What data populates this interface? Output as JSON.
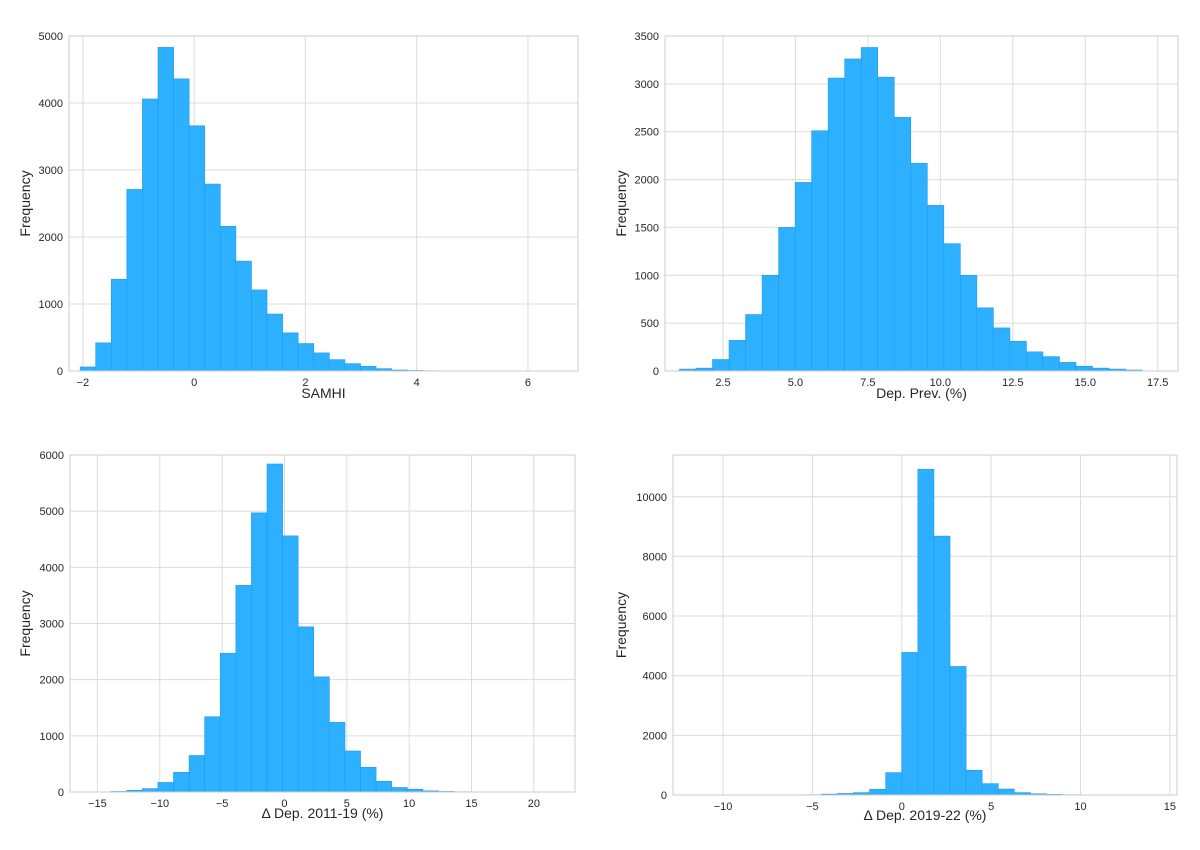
{
  "colors": {
    "bar": "#2db0ff",
    "bar_edge": "#1e9be8",
    "grid": "#dcdcdc",
    "frame": "#cccccc",
    "background": "#ffffff"
  },
  "chart_data": [
    {
      "type": "bar",
      "subtype": "histogram",
      "xlabel": "SAMHI",
      "ylabel": "Frequency",
      "xlim": [
        -2.25,
        6.9
      ],
      "ylim": [
        0,
        5000
      ],
      "xticks": [
        -2,
        0,
        2,
        4,
        6
      ],
      "xtick_labels": [
        "−2",
        "0",
        "2",
        "4",
        "6"
      ],
      "yticks": [
        0,
        1000,
        2000,
        3000,
        4000,
        5000
      ],
      "ytick_labels": [
        "0",
        "1000",
        "2000",
        "3000",
        "4000",
        "5000"
      ],
      "bin_start": -2.05,
      "bin_width": 0.28,
      "values": [
        60,
        420,
        1370,
        2710,
        4060,
        4830,
        4360,
        3660,
        2790,
        2160,
        1640,
        1210,
        850,
        570,
        410,
        270,
        170,
        110,
        70,
        35,
        15,
        8,
        4,
        2,
        1,
        1,
        0,
        0,
        0
      ]
    },
    {
      "type": "bar",
      "subtype": "histogram",
      "xlabel": "Dep. Prev. (%)",
      "ylabel": "Frequency",
      "xlim": [
        0.5,
        18.2
      ],
      "ylim": [
        0,
        3500
      ],
      "xticks": [
        2.5,
        5.0,
        7.5,
        10.0,
        12.5,
        15.0,
        17.5
      ],
      "xtick_labels": [
        "2.5",
        "5.0",
        "7.5",
        "10.0",
        "12.5",
        "15.0",
        "17.5"
      ],
      "yticks": [
        0,
        500,
        1000,
        1500,
        2000,
        2500,
        3000,
        3500
      ],
      "ytick_labels": [
        "0",
        "500",
        "1000",
        "1500",
        "2000",
        "2500",
        "3000",
        "3500"
      ],
      "bin_start": 1.0,
      "bin_width": 0.57,
      "values": [
        20,
        30,
        120,
        320,
        590,
        1000,
        1500,
        1970,
        2510,
        3060,
        3260,
        3380,
        3070,
        2650,
        2170,
        1730,
        1330,
        1000,
        660,
        450,
        310,
        200,
        150,
        90,
        50,
        30,
        20,
        10
      ]
    },
    {
      "type": "bar",
      "subtype": "histogram",
      "xlabel": "Δ Dep. 2011-19 (%)",
      "ylabel": "Frequency",
      "xlim": [
        -17.2,
        23.3
      ],
      "ylim": [
        0,
        6000
      ],
      "xticks": [
        -15,
        -10,
        -5,
        0,
        5,
        10,
        15,
        20
      ],
      "xtick_labels": [
        "−15",
        "−10",
        "−5",
        "0",
        "5",
        "10",
        "15",
        "20"
      ],
      "yticks": [
        0,
        1000,
        2000,
        3000,
        4000,
        5000,
        6000
      ],
      "ytick_labels": [
        "0",
        "1000",
        "2000",
        "3000",
        "4000",
        "5000",
        "6000"
      ],
      "bin_start": -13.9,
      "bin_width": 1.25,
      "values": [
        10,
        30,
        60,
        170,
        350,
        650,
        1340,
        2470,
        3680,
        4970,
        5840,
        4560,
        2940,
        2050,
        1240,
        730,
        440,
        190,
        80,
        50,
        20,
        10,
        5,
        2,
        1,
        0,
        0,
        0,
        0
      ]
    },
    {
      "type": "bar",
      "subtype": "histogram",
      "xlabel": "Δ Dep. 2019-22 (%)",
      "ylabel": "Frequency",
      "xlim": [
        -12.8,
        15.4
      ],
      "ylim": [
        0,
        11400
      ],
      "xticks": [
        -10,
        -5,
        0,
        5,
        10,
        15
      ],
      "xtick_labels": [
        "−10",
        "−5",
        "0",
        "5",
        "10",
        "15"
      ],
      "yticks": [
        0,
        2000,
        4000,
        6000,
        8000,
        10000
      ],
      "ytick_labels": [
        "0",
        "2000",
        "4000",
        "6000",
        "8000",
        "10000"
      ],
      "bin_start": -5.4,
      "bin_width": 0.9,
      "values": [
        10,
        30,
        50,
        80,
        190,
        750,
        4780,
        10920,
        8680,
        4310,
        830,
        380,
        200,
        80,
        40,
        20,
        10,
        5,
        3,
        2,
        1,
        1,
        0,
        0
      ]
    }
  ]
}
